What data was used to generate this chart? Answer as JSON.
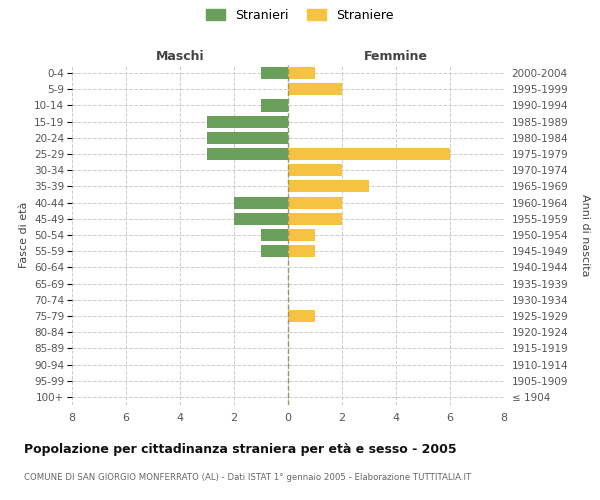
{
  "age_groups": [
    "100+",
    "95-99",
    "90-94",
    "85-89",
    "80-84",
    "75-79",
    "70-74",
    "65-69",
    "60-64",
    "55-59",
    "50-54",
    "45-49",
    "40-44",
    "35-39",
    "30-34",
    "25-29",
    "20-24",
    "15-19",
    "10-14",
    "5-9",
    "0-4"
  ],
  "birth_years": [
    "≤ 1904",
    "1905-1909",
    "1910-1914",
    "1915-1919",
    "1920-1924",
    "1925-1929",
    "1930-1934",
    "1935-1939",
    "1940-1944",
    "1945-1949",
    "1950-1954",
    "1955-1959",
    "1960-1964",
    "1965-1969",
    "1970-1974",
    "1975-1979",
    "1980-1984",
    "1985-1989",
    "1990-1994",
    "1995-1999",
    "2000-2004"
  ],
  "maschi": [
    0,
    0,
    0,
    0,
    0,
    0,
    0,
    0,
    0,
    1,
    1,
    2,
    2,
    0,
    0,
    3,
    3,
    3,
    1,
    0,
    1
  ],
  "femmine": [
    0,
    0,
    0,
    0,
    0,
    1,
    0,
    0,
    0,
    1,
    1,
    2,
    2,
    3,
    2,
    6,
    0,
    0,
    0,
    2,
    1
  ],
  "color_maschi": "#6a9e5b",
  "color_femmine": "#f5c242",
  "title": "Popolazione per cittadinanza straniera per età e sesso - 2005",
  "subtitle": "COMUNE DI SAN GIORGIO MONFERRATO (AL) - Dati ISTAT 1° gennaio 2005 - Elaborazione TUTTITALIA.IT",
  "xlabel_left": "Maschi",
  "xlabel_right": "Femmine",
  "ylabel_left": "Fasce di età",
  "ylabel_right": "Anni di nascita",
  "legend_maschi": "Stranieri",
  "legend_femmine": "Straniere",
  "xlim": [
    -8,
    8
  ],
  "xticks": [
    -8,
    -6,
    -4,
    -2,
    0,
    2,
    4,
    6,
    8
  ],
  "xtick_labels": [
    "8",
    "6",
    "4",
    "2",
    "0",
    "2",
    "4",
    "6",
    "8"
  ],
  "background_color": "#ffffff",
  "grid_color": "#cccccc",
  "bar_height": 0.75
}
